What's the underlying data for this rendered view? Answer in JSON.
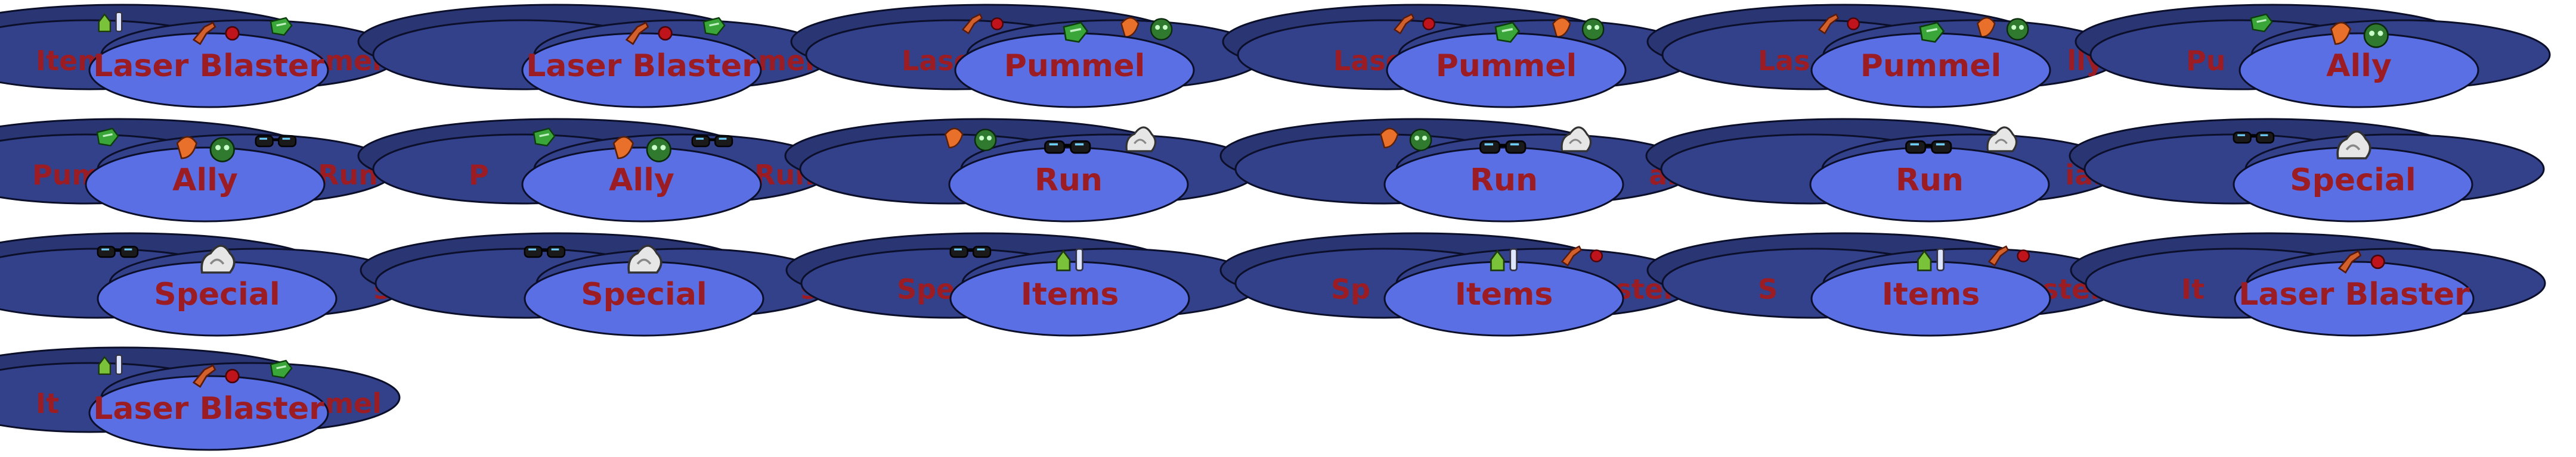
{
  "sprite_sheet": {
    "colors": {
      "back_disc": "#2a3574",
      "mid_disc": "#33408a",
      "front_disc": "#5b6fe4",
      "outline": "#0b0f2a",
      "label": "#9c1c24"
    },
    "frames": [
      {
        "front": "Laser Blaster",
        "back_left": "Items",
        "back_right": "Pummel",
        "front_icon": "laser-blaster-icon",
        "left_icon": "items-icon",
        "right_icon": "pummel-icon"
      },
      {
        "front": "Laser Blaster",
        "back_left": "",
        "back_right": "Pummel",
        "front_icon": "laser-blaster-icon",
        "left_icon": "",
        "right_icon": "pummel-icon"
      },
      {
        "front": "Pummel",
        "back_left": "Laser",
        "back_right": "",
        "front_icon": "pummel-icon",
        "left_icon": "laser-blaster-icon",
        "right_icon": "ally-icon"
      },
      {
        "front": "Pummel",
        "back_left": "Laser",
        "back_right": "",
        "front_icon": "pummel-icon",
        "left_icon": "laser-blaster-icon",
        "right_icon": "ally-icon"
      },
      {
        "front": "Pummel",
        "back_left": "Las",
        "back_right": "lly",
        "front_icon": "pummel-icon",
        "left_icon": "laser-blaster-icon",
        "right_icon": "ally-icon"
      },
      {
        "front": "Ally",
        "back_left": "Pu",
        "back_right": "",
        "front_icon": "ally-icon",
        "left_icon": "pummel-icon",
        "right_icon": ""
      },
      {
        "front": "Ally",
        "back_left": "Pum",
        "back_right": "Run",
        "front_icon": "ally-icon",
        "left_icon": "pummel-icon",
        "right_icon": "run-icon"
      },
      {
        "front": "Ally",
        "back_left": "P",
        "back_right": "Run",
        "front_icon": "ally-icon",
        "left_icon": "pummel-icon",
        "right_icon": "run-icon"
      },
      {
        "front": "Run",
        "back_left": "",
        "back_right": "",
        "front_icon": "run-icon",
        "left_icon": "ally-icon",
        "right_icon": "special-icon"
      },
      {
        "front": "Run",
        "back_left": "",
        "back_right": "al",
        "front_icon": "run-icon",
        "left_icon": "ally-icon",
        "right_icon": "special-icon"
      },
      {
        "front": "Run",
        "back_left": "",
        "back_right": "ial",
        "front_icon": "run-icon",
        "left_icon": "",
        "right_icon": "special-icon"
      },
      {
        "front": "Special",
        "back_left": "",
        "back_right": "",
        "front_icon": "special-icon",
        "left_icon": "run-icon",
        "right_icon": ""
      },
      {
        "front": "Special",
        "back_left": "",
        "back_right": "s",
        "front_icon": "special-icon",
        "left_icon": "run-icon",
        "right_icon": ""
      },
      {
        "front": "Special",
        "back_left": "",
        "back_right": "s",
        "front_icon": "special-icon",
        "left_icon": "run-icon",
        "right_icon": ""
      },
      {
        "front": "Items",
        "back_left": "Spe",
        "back_right": "",
        "front_icon": "items-icon",
        "left_icon": "run-icon",
        "right_icon": ""
      },
      {
        "front": "Items",
        "back_left": "Sp",
        "back_right": "aster",
        "front_icon": "items-icon",
        "left_icon": "",
        "right_icon": "laser-blaster-icon"
      },
      {
        "front": "Items",
        "back_left": "S",
        "back_right": "Blaster",
        "front_icon": "items-icon",
        "left_icon": "",
        "right_icon": "laser-blaster-icon"
      },
      {
        "front": "Laser Blaster",
        "back_left": "It",
        "back_right": "",
        "front_icon": "laser-blaster-icon",
        "left_icon": "",
        "right_icon": ""
      },
      {
        "front": "Laser Blaster",
        "back_left": "It",
        "back_right": "mel",
        "front_icon": "laser-blaster-icon",
        "left_icon": "items-icon",
        "right_icon": "pummel-icon"
      }
    ]
  }
}
